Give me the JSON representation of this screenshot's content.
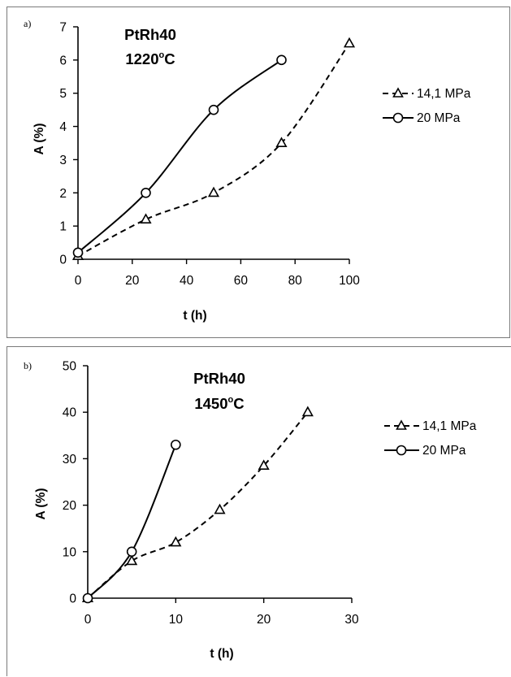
{
  "chart_data": [
    {
      "type": "line",
      "panel_label": "a)",
      "annotation": [
        "PtRh40",
        "1220",
        "o",
        "C"
      ],
      "xlabel": "t (h)",
      "ylabel": "A (%)",
      "xlim": [
        0,
        100
      ],
      "ylim": [
        0,
        7
      ],
      "xticks": [
        0,
        20,
        40,
        60,
        80,
        100
      ],
      "yticks": [
        0,
        1,
        2,
        3,
        4,
        5,
        6,
        7
      ],
      "grid": false,
      "legend_position": "right",
      "series": [
        {
          "name": "14,1 MPa",
          "marker": "triangle",
          "style": "dashed",
          "x": [
            0,
            25,
            50,
            75,
            100
          ],
          "y": [
            0.1,
            1.2,
            2.0,
            3.5,
            6.5
          ]
        },
        {
          "name": "20 MPa",
          "marker": "circle",
          "style": "solid",
          "x": [
            0,
            25,
            50,
            75
          ],
          "y": [
            0.2,
            2.0,
            4.5,
            6.0
          ]
        }
      ]
    },
    {
      "type": "line",
      "panel_label": "b)",
      "annotation": [
        "PtRh40",
        "1450",
        "o",
        "C"
      ],
      "xlabel": "t (h)",
      "ylabel": "A (%)",
      "xlim": [
        0,
        30
      ],
      "ylim": [
        0,
        50
      ],
      "xticks": [
        0,
        10,
        20,
        30
      ],
      "yticks": [
        0,
        10,
        20,
        30,
        40,
        50
      ],
      "grid": false,
      "legend_position": "right",
      "series": [
        {
          "name": "14,1 MPa",
          "marker": "triangle",
          "style": "dashed",
          "x": [
            0,
            5,
            10,
            15,
            20,
            25
          ],
          "y": [
            0,
            8,
            12,
            19,
            28.5,
            40
          ]
        },
        {
          "name": "20 MPa",
          "marker": "circle",
          "style": "solid",
          "x": [
            0,
            5,
            10
          ],
          "y": [
            0,
            10,
            33
          ]
        }
      ]
    }
  ]
}
